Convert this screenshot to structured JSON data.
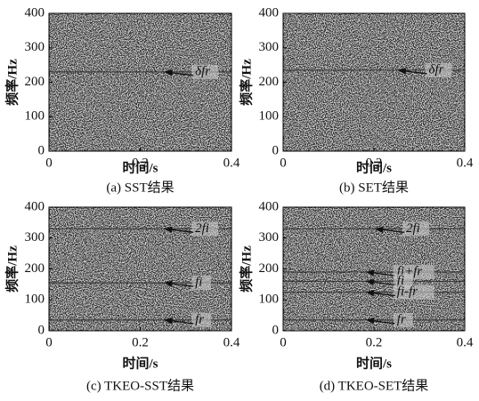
{
  "chart_data": [
    {
      "type": "spectrogram",
      "title": "(a) SST结果",
      "xlabel": "时间/s",
      "ylabel": "频率/Hz",
      "xlim": [
        0,
        0.4
      ],
      "ylim": [
        0,
        400
      ],
      "xticks": [
        0,
        0.2,
        0.4
      ],
      "yticks": [
        0,
        100,
        200,
        300,
        400
      ],
      "annotations": [
        {
          "text": "δfr",
          "x": 0.25,
          "y": 230
        }
      ]
    },
    {
      "type": "spectrogram",
      "title": "(b) SET结果",
      "xlabel": "时间/s",
      "ylabel": "频率/Hz",
      "xlim": [
        0,
        0.4
      ],
      "ylim": [
        0,
        400
      ],
      "xticks": [
        0,
        0.2,
        0.4
      ],
      "yticks": [
        0,
        100,
        200,
        300,
        400
      ],
      "annotations": [
        {
          "text": "δfr",
          "x": 0.25,
          "y": 235
        }
      ]
    },
    {
      "type": "spectrogram",
      "title": "(c) TKEO-SST结果",
      "xlabel": "时间/s",
      "ylabel": "频率/Hz",
      "xlim": [
        0,
        0.4
      ],
      "ylim": [
        0,
        400
      ],
      "xticks": [
        0,
        0.2,
        0.4
      ],
      "yticks": [
        0,
        100,
        200,
        300,
        400
      ],
      "annotations": [
        {
          "text": "2fi",
          "x": 0.25,
          "y": 330
        },
        {
          "text": "fi",
          "x": 0.25,
          "y": 155
        },
        {
          "text": "fr",
          "x": 0.25,
          "y": 35
        }
      ]
    },
    {
      "type": "spectrogram",
      "title": "(d) TKEO-SET结果",
      "xlabel": "时间/s",
      "ylabel": "频率/Hz",
      "xlim": [
        0,
        0.4
      ],
      "ylim": [
        0,
        400
      ],
      "xticks": [
        0,
        0.2,
        0.4
      ],
      "yticks": [
        0,
        100,
        200,
        300,
        400
      ],
      "annotations": [
        {
          "text": "2fi",
          "x": 0.2,
          "y": 330
        },
        {
          "text": "fi+fr",
          "x": 0.18,
          "y": 190
        },
        {
          "text": "fi",
          "x": 0.18,
          "y": 160
        },
        {
          "text": "fi-fr",
          "x": 0.18,
          "y": 125
        },
        {
          "text": "fr",
          "x": 0.18,
          "y": 35
        }
      ]
    }
  ]
}
